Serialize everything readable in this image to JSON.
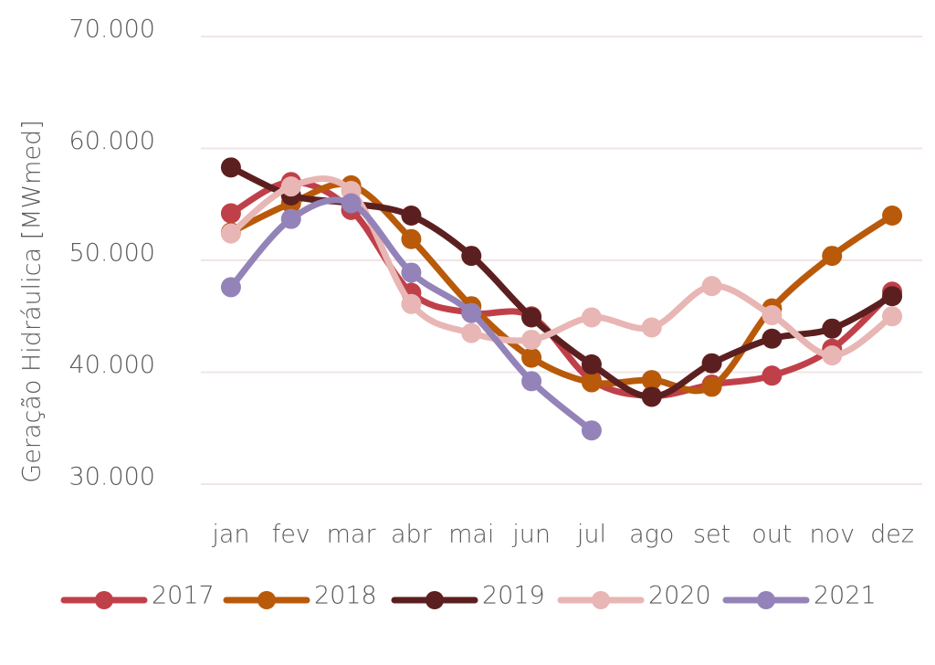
{
  "chart_data": {
    "type": "line",
    "y_label": "Geração Hidráulica [MWmed]",
    "categories": [
      "jan",
      "fev",
      "mar",
      "abr",
      "mai",
      "jun",
      "jul",
      "ago",
      "set",
      "out",
      "nov",
      "dez"
    ],
    "ylim": [
      30000,
      70000
    ],
    "yticks": [
      {
        "value": 30000,
        "label": "30.000"
      },
      {
        "value": 40000,
        "label": "40.000"
      },
      {
        "value": 50000,
        "label": "50.000"
      },
      {
        "value": 60000,
        "label": "60.000"
      },
      {
        "value": 70000,
        "label": "70.000"
      }
    ],
    "grid": true,
    "legend": "bottom",
    "series": [
      {
        "name": "2017",
        "color": "#c0404a",
        "values": [
          54200,
          57000,
          54500,
          47100,
          45300,
          45000,
          39300,
          37900,
          38900,
          39700,
          42100,
          47200
        ]
      },
      {
        "name": "2018",
        "color": "#b85a0a",
        "values": [
          52500,
          55100,
          56700,
          51900,
          45900,
          41300,
          39100,
          39300,
          38700,
          45700,
          50400,
          54000
        ]
      },
      {
        "name": "2019",
        "color": "#5c1f1f",
        "values": [
          58300,
          55800,
          55100,
          54000,
          50400,
          44900,
          40700,
          37800,
          40800,
          43000,
          43900,
          46800
        ]
      },
      {
        "name": "2020",
        "color": "#e8b6b4",
        "values": [
          52400,
          56600,
          56200,
          46100,
          43500,
          42900,
          44900,
          44000,
          47700,
          45100,
          41500,
          45000
        ]
      },
      {
        "name": "2021",
        "color": "#9483b8",
        "values": [
          47600,
          53700,
          55100,
          48900,
          45300,
          39200,
          34800,
          null,
          null,
          null,
          null,
          null
        ]
      }
    ]
  }
}
